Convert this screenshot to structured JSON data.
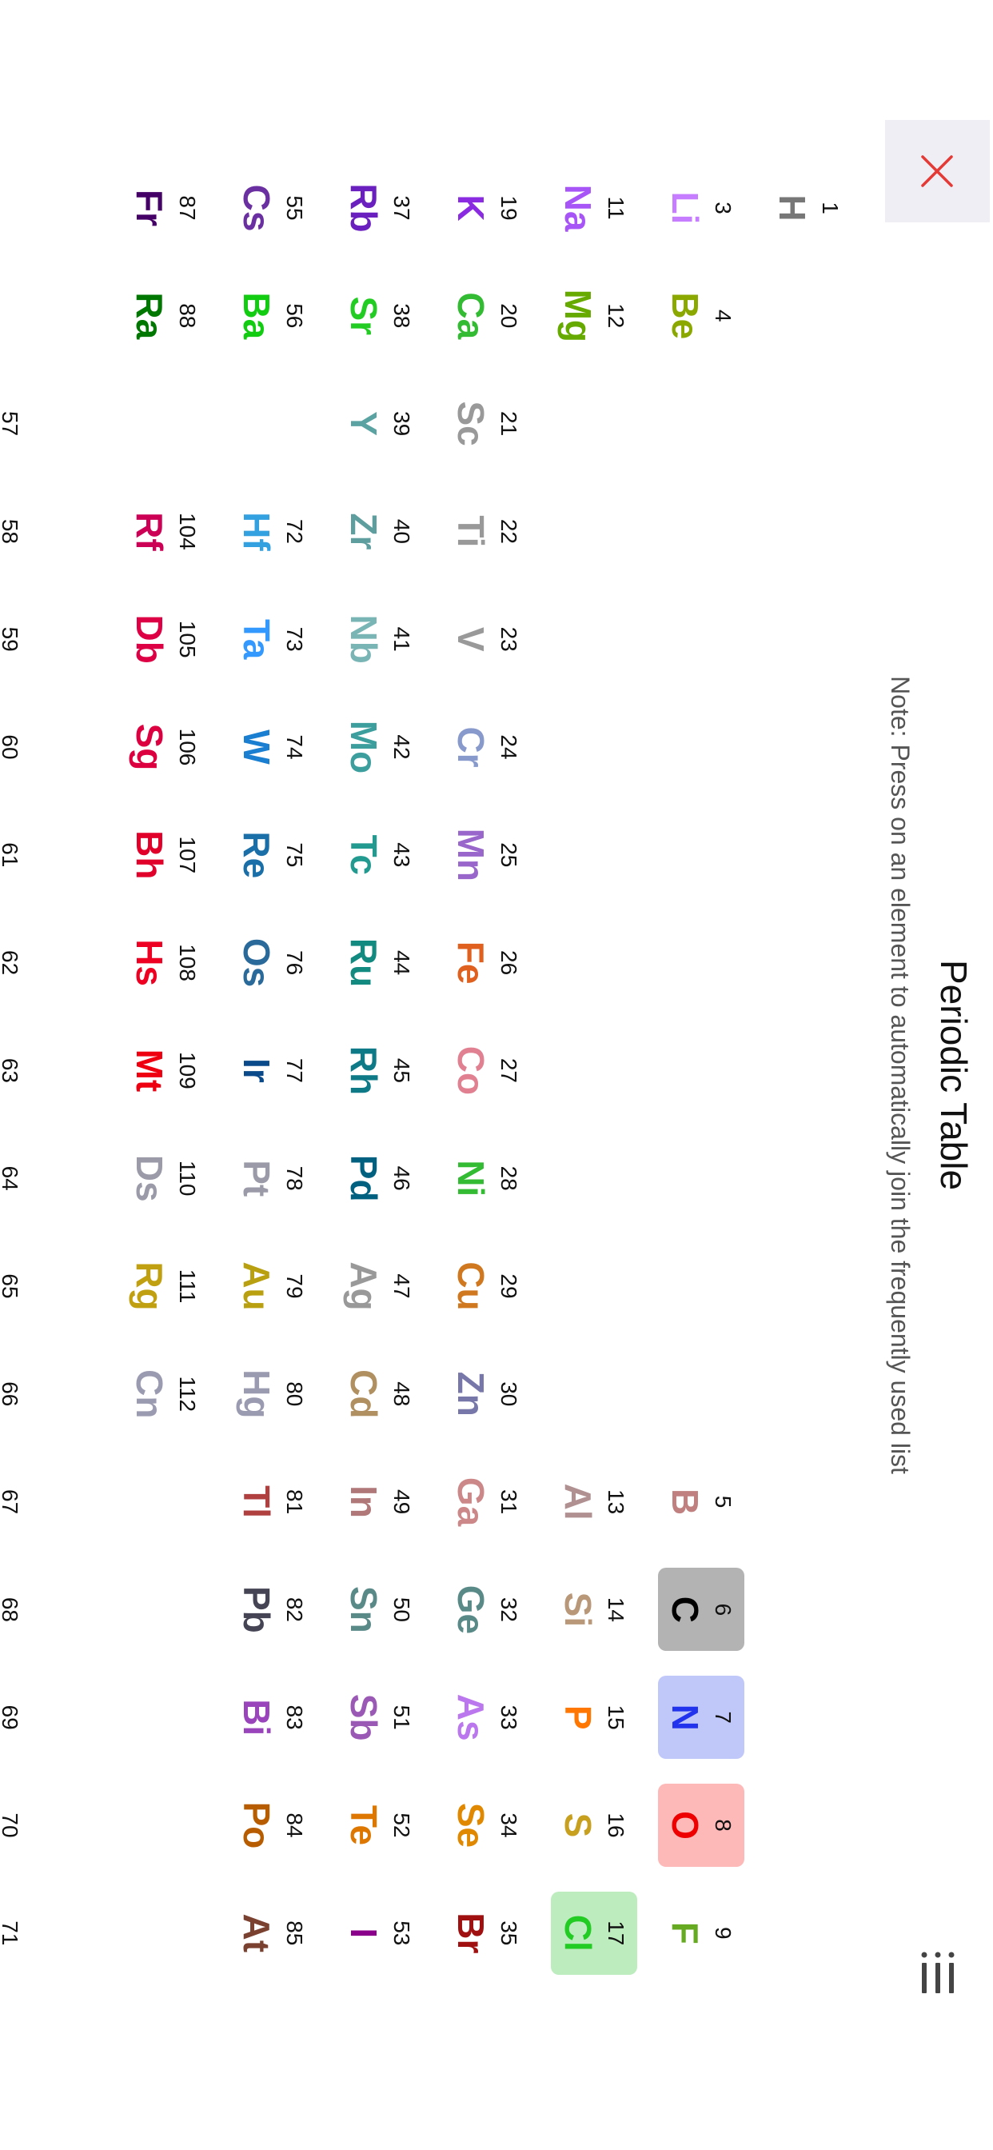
{
  "header": {
    "title": "Periodic Table",
    "note": "Note: Press on an element to automatically join the frequently used list",
    "close_icon": "close-x-icon",
    "close_color": "#e53935",
    "menu_icon": "list-menu-icon"
  },
  "elements": [
    {
      "n": "1",
      "s": "H",
      "period": 1,
      "group": 1,
      "color": "#777777"
    },
    {
      "n": "3",
      "s": "Li",
      "period": 2,
      "group": 1,
      "color": "#c77dff"
    },
    {
      "n": "4",
      "s": "Be",
      "period": 2,
      "group": 2,
      "color": "#8aa800"
    },
    {
      "n": "5",
      "s": "B",
      "period": 2,
      "group": 13,
      "color": "#c08080"
    },
    {
      "n": "6",
      "s": "C",
      "period": 2,
      "group": 14,
      "color": "#000000",
      "bg": "#b3b3b3"
    },
    {
      "n": "7",
      "s": "N",
      "period": 2,
      "group": 15,
      "color": "#2233ee",
      "bg": "#c0c8fa"
    },
    {
      "n": "8",
      "s": "O",
      "period": 2,
      "group": 16,
      "color": "#ee0000",
      "bg": "#fdb8b8"
    },
    {
      "n": "9",
      "s": "F",
      "period": 2,
      "group": 17,
      "color": "#66aa22"
    },
    {
      "n": "11",
      "s": "Na",
      "period": 3,
      "group": 1,
      "color": "#a855f7"
    },
    {
      "n": "12",
      "s": "Mg",
      "period": 3,
      "group": 2,
      "color": "#66aa00"
    },
    {
      "n": "13",
      "s": "Al",
      "period": 3,
      "group": 13,
      "color": "#b09090"
    },
    {
      "n": "14",
      "s": "Si",
      "period": 3,
      "group": 14,
      "color": "#b89878"
    },
    {
      "n": "15",
      "s": "P",
      "period": 3,
      "group": 15,
      "color": "#ff7700"
    },
    {
      "n": "16",
      "s": "S",
      "period": 3,
      "group": 16,
      "color": "#c8a020"
    },
    {
      "n": "17",
      "s": "Cl",
      "period": 3,
      "group": 17,
      "color": "#22cc22",
      "bg": "#bdecbf"
    },
    {
      "n": "19",
      "s": "K",
      "period": 4,
      "group": 1,
      "color": "#8a2be2"
    },
    {
      "n": "20",
      "s": "Ca",
      "period": 4,
      "group": 2,
      "color": "#33bb33"
    },
    {
      "n": "21",
      "s": "Sc",
      "period": 4,
      "group": 3,
      "color": "#999999"
    },
    {
      "n": "22",
      "s": "Ti",
      "period": 4,
      "group": 4,
      "color": "#999999"
    },
    {
      "n": "23",
      "s": "V",
      "period": 4,
      "group": 5,
      "color": "#999999"
    },
    {
      "n": "24",
      "s": "Cr",
      "period": 4,
      "group": 6,
      "color": "#8899cc"
    },
    {
      "n": "25",
      "s": "Mn",
      "period": 4,
      "group": 7,
      "color": "#9966cc"
    },
    {
      "n": "26",
      "s": "Fe",
      "period": 4,
      "group": 8,
      "color": "#e06020"
    },
    {
      "n": "27",
      "s": "Co",
      "period": 4,
      "group": 9,
      "color": "#e08090"
    },
    {
      "n": "28",
      "s": "Ni",
      "period": 4,
      "group": 10,
      "color": "#33bb33"
    },
    {
      "n": "29",
      "s": "Cu",
      "period": 4,
      "group": 11,
      "color": "#d07820"
    },
    {
      "n": "30",
      "s": "Zn",
      "period": 4,
      "group": 12,
      "color": "#7777aa"
    },
    {
      "n": "31",
      "s": "Ga",
      "period": 4,
      "group": 13,
      "color": "#cc8888"
    },
    {
      "n": "32",
      "s": "Ge",
      "period": 4,
      "group": 14,
      "color": "#5a8a88"
    },
    {
      "n": "33",
      "s": "As",
      "period": 4,
      "group": 15,
      "color": "#bb77ee"
    },
    {
      "n": "34",
      "s": "Se",
      "period": 4,
      "group": 16,
      "color": "#e08800"
    },
    {
      "n": "35",
      "s": "Br",
      "period": 4,
      "group": 17,
      "color": "#a01010"
    },
    {
      "n": "37",
      "s": "Rb",
      "period": 5,
      "group": 1,
      "color": "#6a1fbf"
    },
    {
      "n": "38",
      "s": "Sr",
      "period": 5,
      "group": 2,
      "color": "#22cc22"
    },
    {
      "n": "39",
      "s": "Y",
      "period": 5,
      "group": 3,
      "color": "#5ba3a3"
    },
    {
      "n": "40",
      "s": "Zr",
      "period": 5,
      "group": 4,
      "color": "#5f9e9e"
    },
    {
      "n": "41",
      "s": "Nb",
      "period": 5,
      "group": 5,
      "color": "#7ab5b5"
    },
    {
      "n": "42",
      "s": "Mo",
      "period": 5,
      "group": 6,
      "color": "#3d9e9e"
    },
    {
      "n": "43",
      "s": "Tc",
      "period": 5,
      "group": 7,
      "color": "#229a90"
    },
    {
      "n": "44",
      "s": "Ru",
      "period": 5,
      "group": 8,
      "color": "#128a80"
    },
    {
      "n": "45",
      "s": "Rh",
      "period": 5,
      "group": 9,
      "color": "#0e7a88"
    },
    {
      "n": "46",
      "s": "Pd",
      "period": 5,
      "group": 10,
      "color": "#006080"
    },
    {
      "n": "47",
      "s": "Ag",
      "period": 5,
      "group": 11,
      "color": "#999999"
    },
    {
      "n": "48",
      "s": "Cd",
      "period": 5,
      "group": 12,
      "color": "#b09060"
    },
    {
      "n": "49",
      "s": "In",
      "period": 5,
      "group": 13,
      "color": "#b07878"
    },
    {
      "n": "50",
      "s": "Sn",
      "period": 5,
      "group": 14,
      "color": "#5a8a88"
    },
    {
      "n": "51",
      "s": "Sb",
      "period": 5,
      "group": 15,
      "color": "#9b59b6"
    },
    {
      "n": "52",
      "s": "Te",
      "period": 5,
      "group": 16,
      "color": "#dd7700"
    },
    {
      "n": "53",
      "s": "I",
      "period": 5,
      "group": 17,
      "color": "#8b008b"
    },
    {
      "n": "55",
      "s": "Cs",
      "period": 6,
      "group": 1,
      "color": "#6a2fa0"
    },
    {
      "n": "56",
      "s": "Ba",
      "period": 6,
      "group": 2,
      "color": "#11cc11"
    },
    {
      "n": "72",
      "s": "Hf",
      "period": 6,
      "group": 4,
      "color": "#33a0e0"
    },
    {
      "n": "73",
      "s": "Ta",
      "period": 6,
      "group": 5,
      "color": "#3399ff"
    },
    {
      "n": "74",
      "s": "W",
      "period": 6,
      "group": 6,
      "color": "#1a7fd0"
    },
    {
      "n": "75",
      "s": "Re",
      "period": 6,
      "group": 7,
      "color": "#1a6fa8"
    },
    {
      "n": "76",
      "s": "Os",
      "period": 6,
      "group": 8,
      "color": "#2a6a9a"
    },
    {
      "n": "77",
      "s": "Ir",
      "period": 6,
      "group": 9,
      "color": "#0a4a8a"
    },
    {
      "n": "78",
      "s": "Pt",
      "period": 6,
      "group": 10,
      "color": "#9a9aa8"
    },
    {
      "n": "79",
      "s": "Au",
      "period": 6,
      "group": 11,
      "color": "#b8a010"
    },
    {
      "n": "80",
      "s": "Hg",
      "period": 6,
      "group": 12,
      "color": "#9a9ab0"
    },
    {
      "n": "81",
      "s": "Tl",
      "period": 6,
      "group": 13,
      "color": "#b04040"
    },
    {
      "n": "82",
      "s": "Pb",
      "period": 6,
      "group": 14,
      "color": "#444455"
    },
    {
      "n": "83",
      "s": "Bi",
      "period": 6,
      "group": 15,
      "color": "#9944bb"
    },
    {
      "n": "84",
      "s": "Po",
      "period": 6,
      "group": 16,
      "color": "#b85c00"
    },
    {
      "n": "85",
      "s": "At",
      "period": 6,
      "group": 17,
      "color": "#7a4030"
    },
    {
      "n": "87",
      "s": "Fr",
      "period": 7,
      "group": 1,
      "color": "#440066"
    },
    {
      "n": "88",
      "s": "Ra",
      "period": 7,
      "group": 2,
      "color": "#007700"
    },
    {
      "n": "104",
      "s": "Rf",
      "period": 7,
      "group": 4,
      "color": "#cc0055"
    },
    {
      "n": "105",
      "s": "Db",
      "period": 7,
      "group": 5,
      "color": "#dd0044"
    },
    {
      "n": "106",
      "s": "Sg",
      "period": 7,
      "group": 6,
      "color": "#dd0040"
    },
    {
      "n": "107",
      "s": "Bh",
      "period": 7,
      "group": 7,
      "color": "#e0002a"
    },
    {
      "n": "108",
      "s": "Hs",
      "period": 7,
      "group": 8,
      "color": "#ee0022"
    },
    {
      "n": "109",
      "s": "Mt",
      "period": 7,
      "group": 9,
      "color": "#ee0011"
    },
    {
      "n": "110",
      "s": "Ds",
      "period": 7,
      "group": 10,
      "color": "#9a9aa8"
    },
    {
      "n": "111",
      "s": "Rg",
      "period": 7,
      "group": 11,
      "color": "#c0a010"
    },
    {
      "n": "112",
      "s": "Cn",
      "period": 7,
      "group": 12,
      "color": "#9a9ab0"
    }
  ],
  "lanthanides": [
    "57",
    "58",
    "59",
    "60",
    "61",
    "62",
    "63",
    "64",
    "65",
    "66",
    "67",
    "68",
    "69",
    "70",
    "71"
  ]
}
